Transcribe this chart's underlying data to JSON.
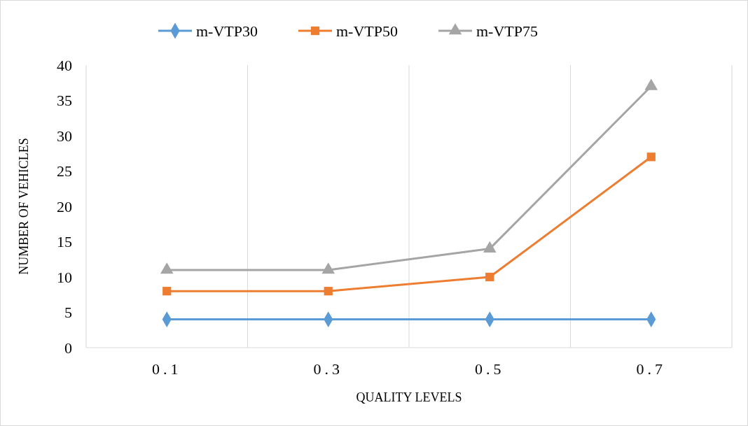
{
  "chart_data": {
    "type": "line",
    "xlabel": "QUALITY LEVELS",
    "ylabel": "NUMBER OF VEHICLES",
    "categories": [
      "0.1",
      "0.3",
      "0.5",
      "0.7"
    ],
    "series": [
      {
        "name": "m-VTP30",
        "color": "#5b9bd5",
        "marker": "diamond",
        "values": [
          4,
          4,
          4,
          4
        ]
      },
      {
        "name": "m-VTP50",
        "color": "#ed7d31",
        "marker": "square",
        "values": [
          8,
          8,
          10,
          27
        ]
      },
      {
        "name": "m-VTP75",
        "color": "#a5a5a5",
        "marker": "triangle",
        "values": [
          11,
          11,
          14,
          37
        ]
      }
    ],
    "ylim": [
      0,
      40
    ],
    "yticks": [
      0,
      5,
      10,
      15,
      20,
      25,
      30,
      35,
      40
    ],
    "grid": "x",
    "legend": "top",
    "line_style": "solid"
  }
}
